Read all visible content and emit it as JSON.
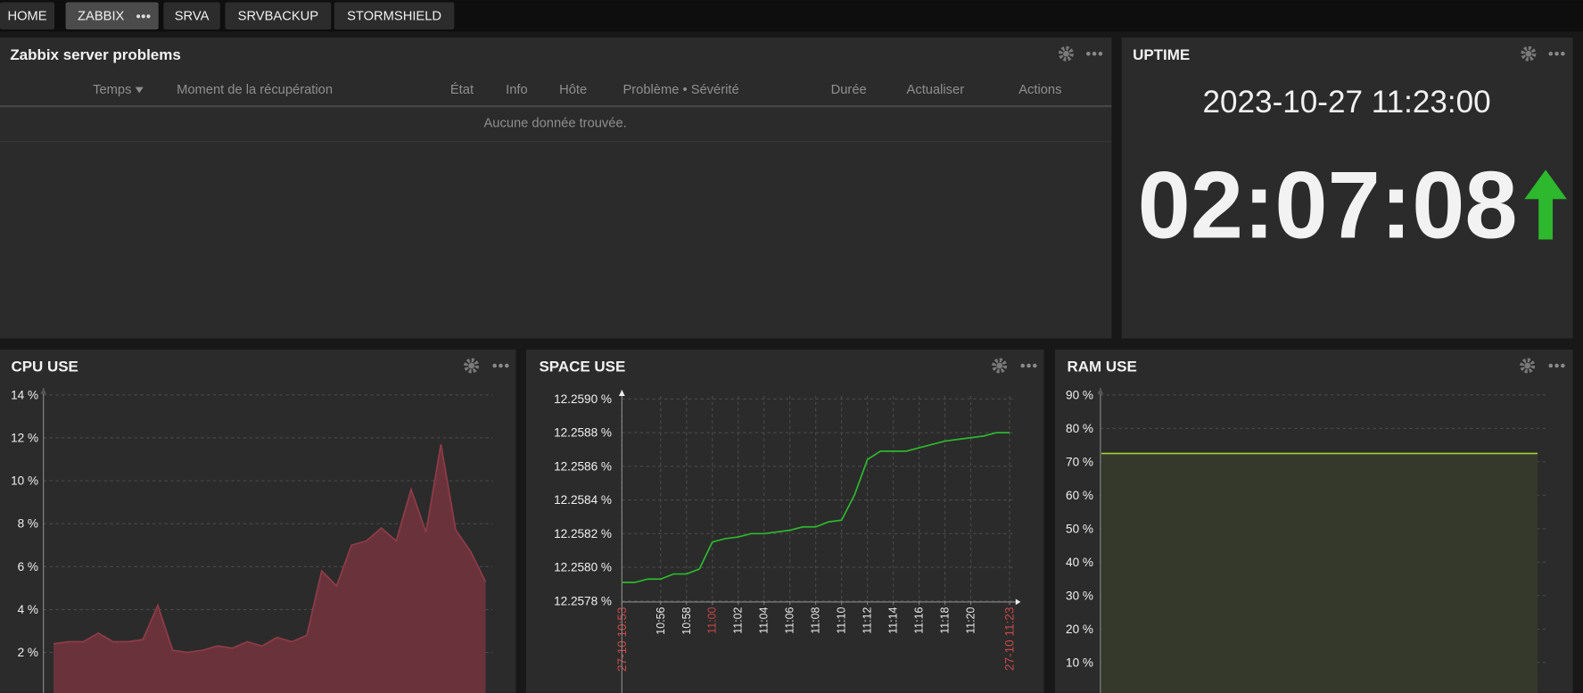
{
  "tabs": [
    "HOME",
    "ZABBIX",
    "SRVA",
    "SRVBACKUP",
    "STORMSHIELD"
  ],
  "active_tab": "ZABBIX",
  "problems": {
    "title": "Zabbix server problems",
    "columns": [
      "Temps",
      "Moment de la récupération",
      "État",
      "Info",
      "Hôte",
      "Problème • Sévérité",
      "Durée",
      "Actualiser",
      "Actions"
    ],
    "empty_message": "Aucune donnée trouvée."
  },
  "uptime": {
    "title": "UPTIME",
    "timestamp": "2023-10-27 11:23:00",
    "duration": "02:07:08",
    "arrow_color": "#2db82d"
  },
  "chart_data": [
    {
      "type": "area",
      "title": "CPU USE",
      "values": [
        2.4,
        2.5,
        2.5,
        2.9,
        2.5,
        2.5,
        2.6,
        4.2,
        2.1,
        2.0,
        2.1,
        2.3,
        2.2,
        2.5,
        2.3,
        2.7,
        2.5,
        2.8,
        5.8,
        5.1,
        7.0,
        7.2,
        7.8,
        7.2,
        9.6,
        7.6,
        11.7,
        7.7,
        6.7,
        5.3
      ],
      "color": "#8e3c47",
      "fill": "#6a333b",
      "ylim": [
        0,
        14
      ],
      "yticks": [
        {
          "value": 2,
          "label": "2 %"
        },
        {
          "value": 4,
          "label": "4 %"
        },
        {
          "value": 6,
          "label": "6 %"
        },
        {
          "value": 8,
          "label": "8 %"
        },
        {
          "value": 10,
          "label": "10 %"
        },
        {
          "value": 12,
          "label": "12 %"
        },
        {
          "value": 14,
          "label": "14 %"
        }
      ],
      "grid": true
    },
    {
      "type": "line",
      "title": "SPACE USE",
      "x": [
        "10:53",
        "10:54",
        "10:55",
        "10:56",
        "10:57",
        "10:58",
        "10:59",
        "11:00",
        "11:01",
        "11:02",
        "11:03",
        "11:04",
        "11:05",
        "11:06",
        "11:07",
        "11:08",
        "11:09",
        "11:10",
        "11:11",
        "11:12",
        "11:13",
        "11:14",
        "11:15",
        "11:16",
        "11:17",
        "11:18",
        "11:19",
        "11:20",
        "11:21",
        "11:22",
        "11:23"
      ],
      "values": [
        12.25791,
        12.25791,
        12.25793,
        12.25793,
        12.25796,
        12.25796,
        12.25799,
        12.25815,
        12.25817,
        12.25818,
        12.2582,
        12.2582,
        12.25821,
        12.25822,
        12.25824,
        12.25824,
        12.25827,
        12.25828,
        12.25843,
        12.25864,
        12.25869,
        12.25869,
        12.25869,
        12.25871,
        12.25873,
        12.25875,
        12.25876,
        12.25877,
        12.25878,
        12.2588,
        12.2588
      ],
      "color": "#2db82d",
      "ylim": [
        12.2578,
        12.259
      ],
      "yticks": [
        {
          "value": 12.2578,
          "label": "12.2578 %"
        },
        {
          "value": 12.258,
          "label": "12.2580 %"
        },
        {
          "value": 12.2582,
          "label": "12.2582 %"
        },
        {
          "value": 12.2584,
          "label": "12.2584 %"
        },
        {
          "value": 12.2586,
          "label": "12.2586 %"
        },
        {
          "value": 12.2588,
          "label": "12.2588 %"
        },
        {
          "value": 12.259,
          "label": "12.2590 %"
        }
      ],
      "xlim": [
        "10:53",
        "11:23"
      ],
      "xticks": [
        {
          "value": "10:53",
          "label": "27-10 10:53",
          "color": "#c84848"
        },
        "10:56",
        "10:58",
        {
          "value": "11:00",
          "label": "11:00",
          "color": "#c84848"
        },
        "11:02",
        "11:04",
        "11:06",
        "11:08",
        "11:10",
        "11:12",
        "11:14",
        "11:16",
        "11:18",
        "11:20",
        {
          "value": "11:23",
          "label": "27-10 11:23",
          "color": "#c84848"
        }
      ],
      "grid": true
    },
    {
      "type": "area",
      "title": "RAM USE",
      "values": [
        72.5,
        72.5,
        72.5,
        72.5,
        72.5,
        72.5,
        72.5,
        72.5,
        72.5,
        72.5,
        72.5,
        72.5,
        72.5,
        72.5,
        72.5,
        72.5,
        72.5,
        72.5,
        72.5,
        72.5,
        72.5,
        72.5,
        72.5,
        72.5,
        72.5,
        72.5,
        72.5,
        72.5,
        72.5,
        72.5
      ],
      "color": "#a6cf3a",
      "fill": "#34392c",
      "ylim": [
        0,
        90
      ],
      "yticks": [
        {
          "value": 10,
          "label": "10 %"
        },
        {
          "value": 20,
          "label": "20 %"
        },
        {
          "value": 30,
          "label": "30 %"
        },
        {
          "value": 40,
          "label": "40 %"
        },
        {
          "value": 50,
          "label": "50 %"
        },
        {
          "value": 60,
          "label": "60 %"
        },
        {
          "value": 70,
          "label": "70 %"
        },
        {
          "value": 80,
          "label": "80 %"
        },
        {
          "value": 90,
          "label": "90 %"
        }
      ],
      "grid": true
    }
  ]
}
